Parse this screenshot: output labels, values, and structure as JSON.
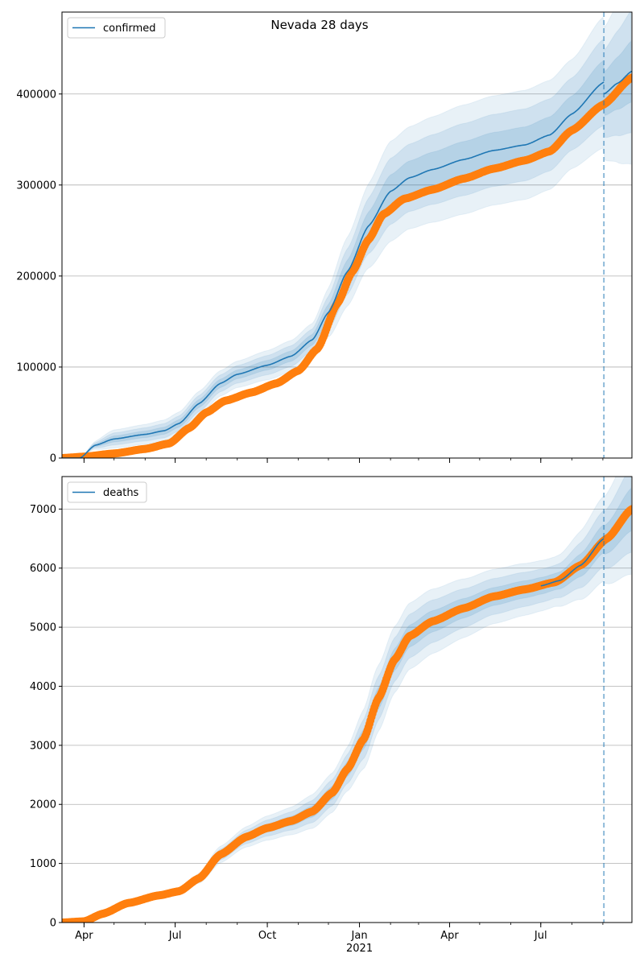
{
  "title": "Nevada 28 days",
  "colors": {
    "model": "#1f77b4",
    "observed": "#ff7f0e",
    "grid": "#b0b0b0",
    "band": "#1f77b4",
    "forecast_line": "#1f77b4"
  },
  "chart_data": [
    {
      "type": "line",
      "legend": "confirmed",
      "legend_location": "top-left",
      "grid": "y",
      "x_start": "2020-03-10",
      "x_end": "2021-09-30",
      "forecast_start": "2021-09-02",
      "ylim": [
        0,
        490000
      ],
      "yticks": [
        0,
        100000,
        200000,
        300000,
        400000
      ],
      "xtick_labels": [
        {
          "date": "2020-04-01",
          "label": "Apr",
          "sub": ""
        },
        {
          "date": "2020-07-01",
          "label": "Jul",
          "sub": ""
        },
        {
          "date": "2020-10-01",
          "label": "Oct",
          "sub": ""
        },
        {
          "date": "2021-01-01",
          "label": "Jan",
          "sub": "2021"
        },
        {
          "date": "2021-04-01",
          "label": "Apr",
          "sub": ""
        },
        {
          "date": "2021-07-01",
          "label": "Jul",
          "sub": ""
        }
      ],
      "model_series": [
        {
          "date": "2020-03-10",
          "value": 0
        },
        {
          "date": "2020-03-28",
          "value": 0
        },
        {
          "date": "2020-04-12",
          "value": 14000
        },
        {
          "date": "2020-05-01",
          "value": 21000
        },
        {
          "date": "2020-06-01",
          "value": 26000
        },
        {
          "date": "2020-06-20",
          "value": 30000
        },
        {
          "date": "2020-07-05",
          "value": 38000
        },
        {
          "date": "2020-07-25",
          "value": 60000
        },
        {
          "date": "2020-08-15",
          "value": 82000
        },
        {
          "date": "2020-09-01",
          "value": 92000
        },
        {
          "date": "2020-10-01",
          "value": 102000
        },
        {
          "date": "2020-10-25",
          "value": 112000
        },
        {
          "date": "2020-11-15",
          "value": 130000
        },
        {
          "date": "2020-12-01",
          "value": 160000
        },
        {
          "date": "2020-12-20",
          "value": 205000
        },
        {
          "date": "2021-01-10",
          "value": 255000
        },
        {
          "date": "2021-02-01",
          "value": 293000
        },
        {
          "date": "2021-02-20",
          "value": 308000
        },
        {
          "date": "2021-03-15",
          "value": 317000
        },
        {
          "date": "2021-04-15",
          "value": 328000
        },
        {
          "date": "2021-05-15",
          "value": 338000
        },
        {
          "date": "2021-06-15",
          "value": 344000
        },
        {
          "date": "2021-07-10",
          "value": 355000
        },
        {
          "date": "2021-08-01",
          "value": 378000
        },
        {
          "date": "2021-09-02",
          "value": 413000
        }
      ],
      "model_forecast": [
        {
          "date": "2021-09-02",
          "value": 400000
        },
        {
          "date": "2021-09-16",
          "value": 412000
        },
        {
          "date": "2021-09-30",
          "value": 425000
        }
      ],
      "band_spread": [
        {
          "date": "2020-03-10",
          "value": 0
        },
        {
          "date": "2020-03-28",
          "value": 0
        },
        {
          "date": "2020-05-01",
          "value": 10000
        },
        {
          "date": "2020-08-15",
          "value": 14000
        },
        {
          "date": "2020-11-15",
          "value": 18000
        },
        {
          "date": "2020-12-20",
          "value": 38000
        },
        {
          "date": "2021-02-01",
          "value": 55000
        },
        {
          "date": "2021-04-15",
          "value": 60000
        },
        {
          "date": "2021-06-15",
          "value": 60000
        },
        {
          "date": "2021-08-01",
          "value": 60000
        },
        {
          "date": "2021-09-02",
          "value": 72000
        }
      ],
      "observed": [
        {
          "date": "2020-03-10",
          "value": 0
        },
        {
          "date": "2020-04-01",
          "value": 1500
        },
        {
          "date": "2020-05-01",
          "value": 5000
        },
        {
          "date": "2020-06-01",
          "value": 10000
        },
        {
          "date": "2020-06-25",
          "value": 16000
        },
        {
          "date": "2020-07-15",
          "value": 33000
        },
        {
          "date": "2020-08-01",
          "value": 50000
        },
        {
          "date": "2020-08-20",
          "value": 63000
        },
        {
          "date": "2020-09-15",
          "value": 72000
        },
        {
          "date": "2020-10-10",
          "value": 82000
        },
        {
          "date": "2020-11-01",
          "value": 96000
        },
        {
          "date": "2020-11-20",
          "value": 120000
        },
        {
          "date": "2020-12-10",
          "value": 170000
        },
        {
          "date": "2020-12-25",
          "value": 205000
        },
        {
          "date": "2021-01-10",
          "value": 240000
        },
        {
          "date": "2021-01-25",
          "value": 268000
        },
        {
          "date": "2021-02-15",
          "value": 285000
        },
        {
          "date": "2021-03-15",
          "value": 295000
        },
        {
          "date": "2021-04-15",
          "value": 307000
        },
        {
          "date": "2021-05-15",
          "value": 318000
        },
        {
          "date": "2021-06-15",
          "value": 327000
        },
        {
          "date": "2021-07-10",
          "value": 337000
        },
        {
          "date": "2021-08-01",
          "value": 360000
        },
        {
          "date": "2021-09-01",
          "value": 388000
        },
        {
          "date": "2021-09-30",
          "value": 418000
        }
      ]
    },
    {
      "type": "line",
      "legend": "deaths",
      "legend_location": "top-left",
      "grid": "y",
      "x_start": "2020-03-10",
      "x_end": "2021-09-30",
      "forecast_start": "2021-09-02",
      "ylim": [
        0,
        7550
      ],
      "yticks": [
        0,
        1000,
        2000,
        3000,
        4000,
        5000,
        6000,
        7000
      ],
      "xtick_labels": [
        {
          "date": "2020-04-01",
          "label": "Apr",
          "sub": ""
        },
        {
          "date": "2020-07-01",
          "label": "Jul",
          "sub": ""
        },
        {
          "date": "2020-10-01",
          "label": "Oct",
          "sub": ""
        },
        {
          "date": "2021-01-01",
          "label": "Jan",
          "sub": "2021"
        },
        {
          "date": "2021-04-01",
          "label": "Apr",
          "sub": ""
        },
        {
          "date": "2021-07-01",
          "label": "Jul",
          "sub": ""
        }
      ],
      "model_series": [
        {
          "date": "2021-07-01",
          "value": 5700
        },
        {
          "date": "2021-07-20",
          "value": 5790
        },
        {
          "date": "2021-08-10",
          "value": 6050
        },
        {
          "date": "2021-09-02",
          "value": 6500
        }
      ],
      "model_forecast": [],
      "band_spread": [
        {
          "date": "2020-03-10",
          "value": 0
        },
        {
          "date": "2020-07-01",
          "value": 20
        },
        {
          "date": "2020-08-15",
          "value": 140
        },
        {
          "date": "2020-10-15",
          "value": 220
        },
        {
          "date": "2020-12-15",
          "value": 350
        },
        {
          "date": "2021-01-15",
          "value": 560
        },
        {
          "date": "2021-03-01",
          "value": 560
        },
        {
          "date": "2021-05-15",
          "value": 460
        },
        {
          "date": "2021-07-15",
          "value": 420
        },
        {
          "date": "2021-09-02",
          "value": 720
        }
      ],
      "observed": [
        {
          "date": "2020-03-10",
          "value": 0
        },
        {
          "date": "2020-04-01",
          "value": 20
        },
        {
          "date": "2020-04-20",
          "value": 150
        },
        {
          "date": "2020-05-15",
          "value": 330
        },
        {
          "date": "2020-06-15",
          "value": 460
        },
        {
          "date": "2020-07-05",
          "value": 530
        },
        {
          "date": "2020-07-25",
          "value": 750
        },
        {
          "date": "2020-08-15",
          "value": 1150
        },
        {
          "date": "2020-09-10",
          "value": 1450
        },
        {
          "date": "2020-10-01",
          "value": 1600
        },
        {
          "date": "2020-10-25",
          "value": 1720
        },
        {
          "date": "2020-11-15",
          "value": 1880
        },
        {
          "date": "2020-12-05",
          "value": 2200
        },
        {
          "date": "2020-12-20",
          "value": 2600
        },
        {
          "date": "2021-01-05",
          "value": 3100
        },
        {
          "date": "2021-01-20",
          "value": 3800
        },
        {
          "date": "2021-02-05",
          "value": 4450
        },
        {
          "date": "2021-02-20",
          "value": 4850
        },
        {
          "date": "2021-03-15",
          "value": 5100
        },
        {
          "date": "2021-04-15",
          "value": 5320
        },
        {
          "date": "2021-05-15",
          "value": 5520
        },
        {
          "date": "2021-06-15",
          "value": 5640
        },
        {
          "date": "2021-07-15",
          "value": 5760
        },
        {
          "date": "2021-08-10",
          "value": 6050
        },
        {
          "date": "2021-09-05",
          "value": 6500
        },
        {
          "date": "2021-09-30",
          "value": 7000
        }
      ]
    }
  ]
}
